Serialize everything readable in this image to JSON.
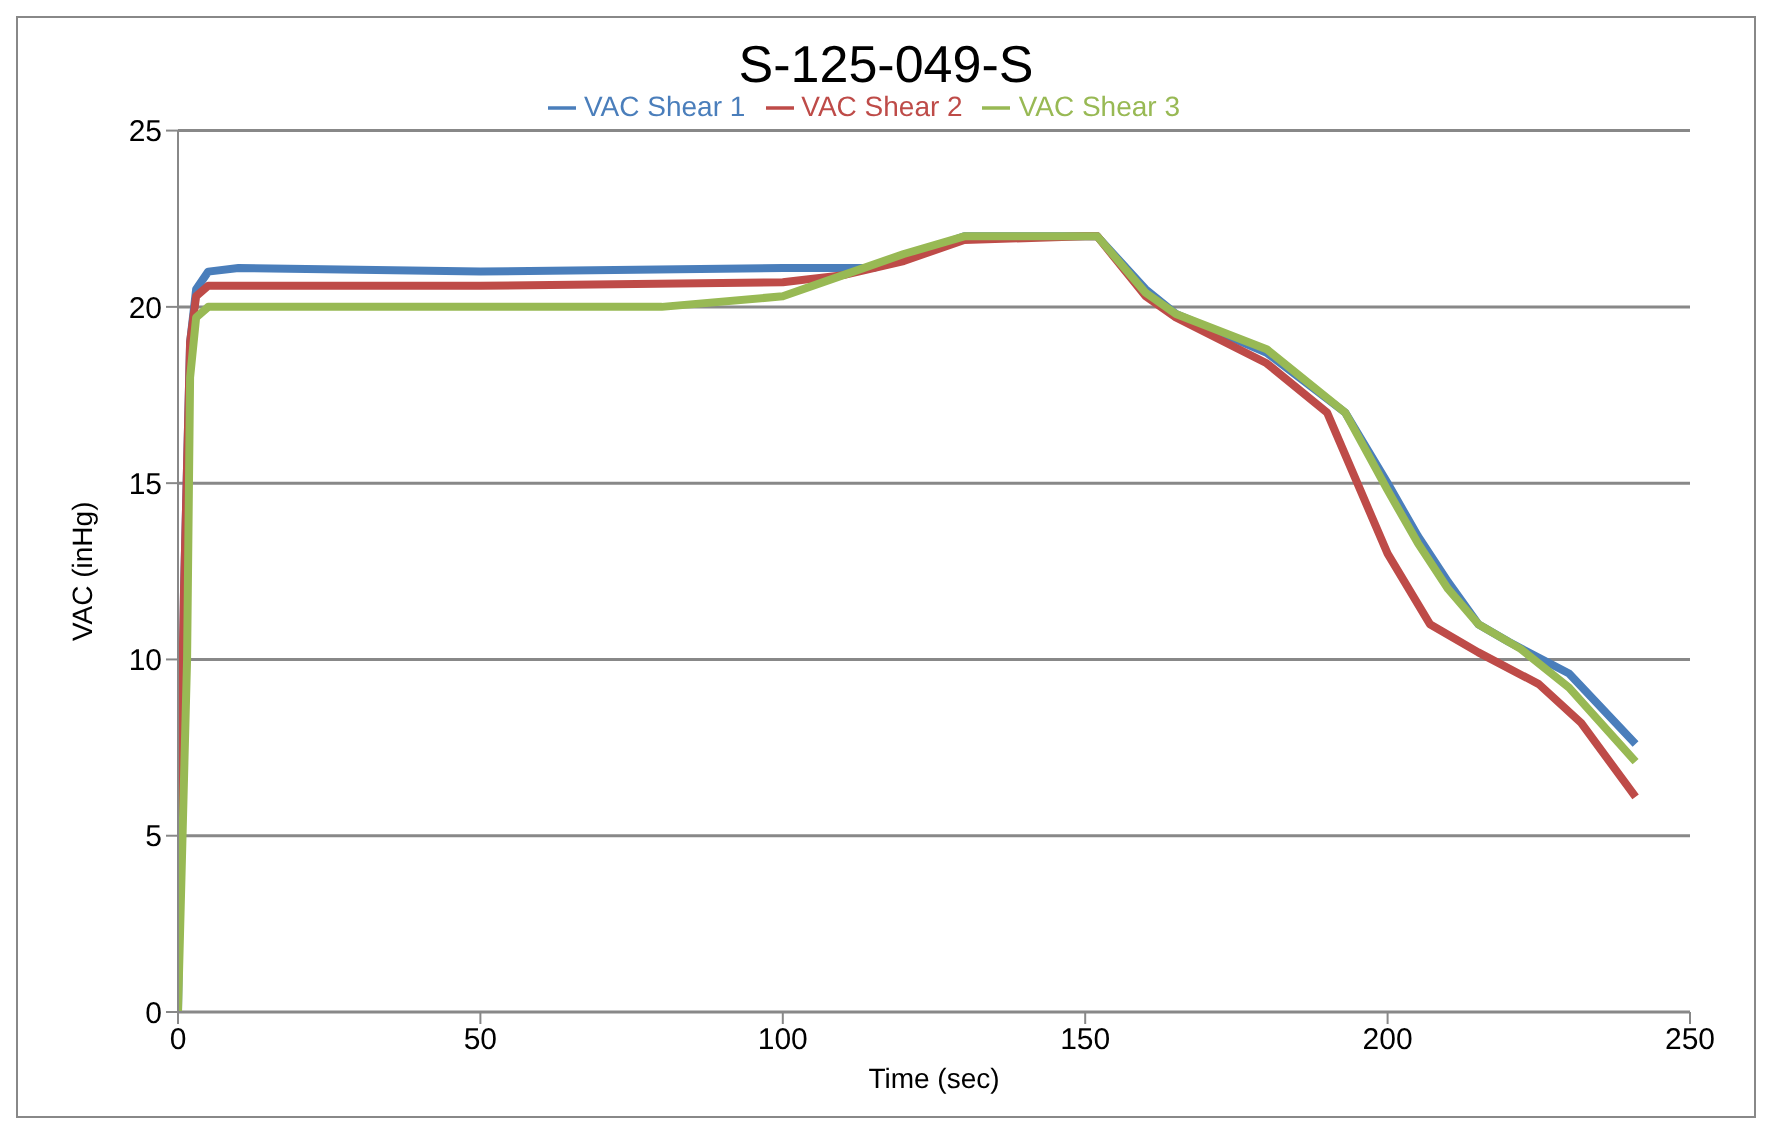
{
  "chart_data": {
    "type": "line",
    "title": "S-125-049-S",
    "xlabel": "Time (sec)",
    "ylabel": "VAC (inHg)",
    "xlim": [
      0,
      250
    ],
    "xticks": [
      0,
      50,
      100,
      150,
      200,
      250
    ],
    "ylim": [
      0,
      25
    ],
    "yticks": [
      0,
      5,
      10,
      15,
      20,
      25
    ],
    "grid": "y",
    "legend": "top",
    "marker": "none",
    "line_style": "solid",
    "series": [
      {
        "name": "VAC Shear 1",
        "color": "#4a7ebb",
        "x": [
          0,
          1,
          2,
          3,
          5,
          10,
          50,
          100,
          115,
          125,
          130,
          150,
          152,
          160,
          165,
          180,
          193,
          200,
          205,
          210,
          215,
          220,
          230,
          241
        ],
        "values": [
          0,
          12,
          19,
          20.5,
          21,
          21.1,
          21,
          21.1,
          21.1,
          21.7,
          22,
          22,
          22,
          20.5,
          19.8,
          18.7,
          17,
          15,
          13.5,
          12.2,
          11,
          10.5,
          9.6,
          7.6
        ]
      },
      {
        "name": "VAC Shear 2",
        "color": "#be4b48",
        "x": [
          0,
          1,
          2,
          3,
          5,
          50,
          100,
          110,
          120,
          130,
          150,
          152,
          160,
          165,
          180,
          190,
          195,
          200,
          207,
          215,
          225,
          232,
          241
        ],
        "values": [
          3,
          12,
          19,
          20.3,
          20.6,
          20.6,
          20.7,
          20.9,
          21.3,
          21.9,
          22,
          22,
          20.3,
          19.7,
          18.4,
          17,
          15,
          13,
          11,
          10.2,
          9.3,
          8.2,
          6.1
        ]
      },
      {
        "name": "VAC Shear 3",
        "color": "#98b954",
        "x": [
          0,
          1.5,
          2,
          3,
          5,
          50,
          80,
          100,
          110,
          120,
          130,
          150,
          152,
          160,
          165,
          180,
          193,
          200,
          205,
          210,
          215,
          222,
          230,
          241
        ],
        "values": [
          0,
          10,
          18,
          19.7,
          20,
          20,
          20,
          20.3,
          20.9,
          21.5,
          22,
          22,
          22,
          20.4,
          19.8,
          18.8,
          17,
          14.8,
          13.3,
          12,
          11,
          10.3,
          9.2,
          7.1
        ]
      }
    ]
  }
}
